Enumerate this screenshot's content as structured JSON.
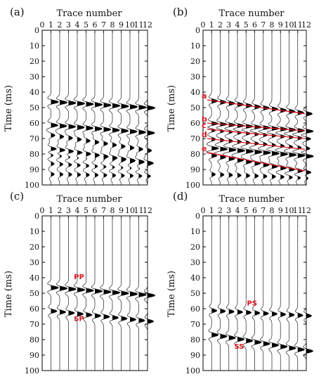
{
  "figure": {
    "panels": [
      {
        "id": "a",
        "label": "(a)",
        "x_title": "Trace number",
        "y_title": "Time (ms)"
      },
      {
        "id": "b",
        "label": "(b)",
        "x_title": "Trace number",
        "y_title": "Time (ms)"
      },
      {
        "id": "c",
        "label": "(c)",
        "x_title": "Trace number",
        "y_title": "Time (ms)"
      },
      {
        "id": "d",
        "label": "(d)",
        "x_title": "Trace number",
        "y_title": "Time (ms)"
      }
    ]
  },
  "chart_data": [
    {
      "panel": "a",
      "type": "line",
      "title": "(a)",
      "xlabel": "Trace number",
      "ylabel": "Time (ms)",
      "x": [
        0,
        1,
        2,
        3,
        4,
        5,
        6,
        7,
        8,
        9,
        10,
        11,
        12
      ],
      "xlim": [
        0,
        12
      ],
      "ylim": [
        0,
        100
      ],
      "y_inverted": true,
      "yticks": [
        0,
        10,
        20,
        30,
        40,
        50,
        60,
        70,
        80,
        90,
        100
      ],
      "style": "wiggle traces, positive lobes filled black",
      "events": [
        {
          "t0": 46,
          "dip": 0.35,
          "amp": 1.0
        },
        {
          "t0": 61,
          "dip": 0.45,
          "amp": 0.95
        },
        {
          "t0": 67,
          "dip": 0.9,
          "amp": 0.55
        },
        {
          "t0": 76,
          "dip": 0.8,
          "amp": 0.85
        },
        {
          "t0": 80,
          "dip": 0.6,
          "amp": 0.5
        },
        {
          "t0": 86,
          "dip": 0.3,
          "amp": 0.45
        },
        {
          "t0": 93,
          "dip": 0.1,
          "amp": 0.45
        }
      ]
    },
    {
      "panel": "b",
      "type": "line",
      "title": "(b)",
      "xlabel": "Trace number",
      "ylabel": "Time (ms)",
      "x": [
        0,
        1,
        2,
        3,
        4,
        5,
        6,
        7,
        8,
        9,
        10,
        11,
        12
      ],
      "xlim": [
        0,
        12
      ],
      "ylim": [
        0,
        100
      ],
      "y_inverted": true,
      "yticks": [
        0,
        10,
        20,
        30,
        40,
        50,
        60,
        70,
        80,
        90,
        100
      ],
      "style": "wiggle traces, positive lobes filled black",
      "events": [
        {
          "t0": 45,
          "dip": 0.75,
          "amp": 0.8
        },
        {
          "t0": 60,
          "dip": 0.45,
          "amp": 1.0
        },
        {
          "t0": 64,
          "dip": 0.5,
          "amp": 0.7
        },
        {
          "t0": 70,
          "dip": 0.55,
          "amp": 0.55
        },
        {
          "t0": 76,
          "dip": 0.45,
          "amp": 1.0
        },
        {
          "t0": 80,
          "dip": 1.0,
          "amp": 0.8
        },
        {
          "t0": 93,
          "dip": 0.2,
          "amp": 0.5
        }
      ],
      "lines": [
        {
          "label": "a",
          "t_start": 45,
          "t_end": 54
        },
        {
          "label": "b",
          "t_start": 60,
          "t_end": 65
        },
        {
          "label": "c",
          "t_start": 64,
          "t_end": 70
        },
        {
          "label": "d",
          "t_start": 70,
          "t_end": 77
        },
        {
          "label": "e",
          "t_start": 79,
          "t_end": 91
        }
      ]
    },
    {
      "panel": "c",
      "type": "line",
      "title": "(c)",
      "xlabel": "Trace number",
      "ylabel": "Time (ms)",
      "x": [
        0,
        1,
        2,
        3,
        4,
        5,
        6,
        7,
        8,
        9,
        10,
        11,
        12
      ],
      "xlim": [
        0,
        12
      ],
      "ylim": [
        0,
        100
      ],
      "y_inverted": true,
      "yticks": [
        0,
        10,
        20,
        30,
        40,
        50,
        60,
        70,
        80,
        90,
        100
      ],
      "style": "wiggle traces, positive lobes filled black",
      "events": [
        {
          "t0": 46,
          "dip": 0.45,
          "amp": 1.0
        },
        {
          "t0": 61,
          "dip": 0.6,
          "amp": 0.8
        }
      ],
      "annotations": [
        {
          "text": "PP",
          "x": 4.2,
          "y": 41
        },
        {
          "text": "SP",
          "x": 4.2,
          "y": 68
        }
      ]
    },
    {
      "panel": "d",
      "type": "line",
      "title": "(d)",
      "xlabel": "Trace number",
      "ylabel": "Time (ms)",
      "x": [
        0,
        1,
        2,
        3,
        4,
        5,
        6,
        7,
        8,
        9,
        10,
        11,
        12
      ],
      "xlim": [
        0,
        12
      ],
      "ylim": [
        0,
        100
      ],
      "y_inverted": true,
      "yticks": [
        0,
        10,
        20,
        30,
        40,
        50,
        60,
        70,
        80,
        90,
        100
      ],
      "style": "wiggle traces, positive lobes filled black",
      "events": [
        {
          "t0": 61,
          "dip": 0.3,
          "amp": 0.7
        },
        {
          "t0": 76,
          "dip": 0.95,
          "amp": 0.9
        }
      ],
      "annotations": [
        {
          "text": "PS",
          "x": 5.7,
          "y": 58
        },
        {
          "text": "SS",
          "x": 4.2,
          "y": 86
        }
      ]
    }
  ]
}
